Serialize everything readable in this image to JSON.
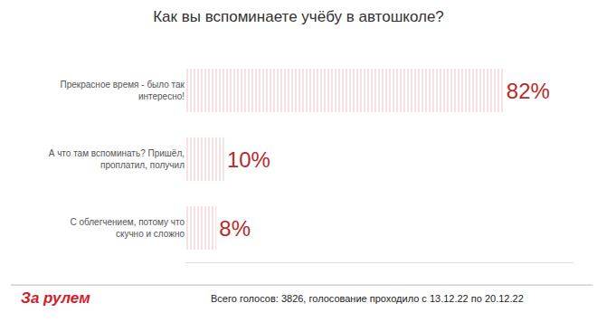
{
  "chart_data": {
    "type": "bar",
    "orientation": "horizontal",
    "title": "Как вы вспоминаете учёбу в автошколе?",
    "categories": [
      "Прекрасное время - было так интересно!",
      "А что там вспоминать? Пришёл, проплатил, получил",
      "С облегчением, потому что скучно и сложно"
    ],
    "values": [
      82,
      10,
      8
    ],
    "value_labels": [
      "82%",
      "10%",
      "8%"
    ],
    "data_labels": true,
    "color": "#b82a2a",
    "xlim": [
      0,
      100
    ],
    "grid": false,
    "tick_labels": "y",
    "annotations": [
      "За рулем",
      "Всего голосов: 3826, голосование проходило с 13.12.22 по 20.12.22"
    ]
  }
}
